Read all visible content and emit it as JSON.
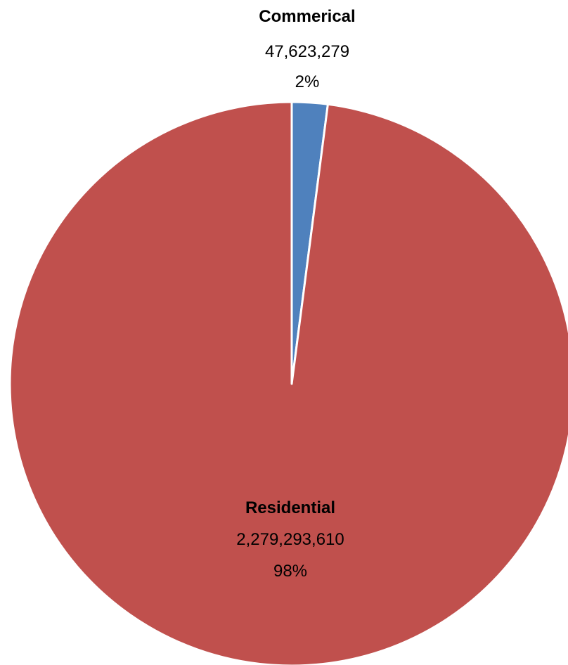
{
  "chart_data": {
    "type": "pie",
    "title": "",
    "start_angle_deg": 0,
    "direction": "clockwise",
    "slices": [
      {
        "name": "Commerical",
        "value": 47623279,
        "value_label": "47,623,279",
        "percent": 2,
        "percent_label": "2%",
        "color": "#4f81bd"
      },
      {
        "name": "Residential",
        "value": 2279293610,
        "value_label": "2,279,293,610",
        "percent": 98,
        "percent_label": "98%",
        "color": "#c0504d"
      }
    ],
    "slice_border_color": "#ffffff"
  }
}
